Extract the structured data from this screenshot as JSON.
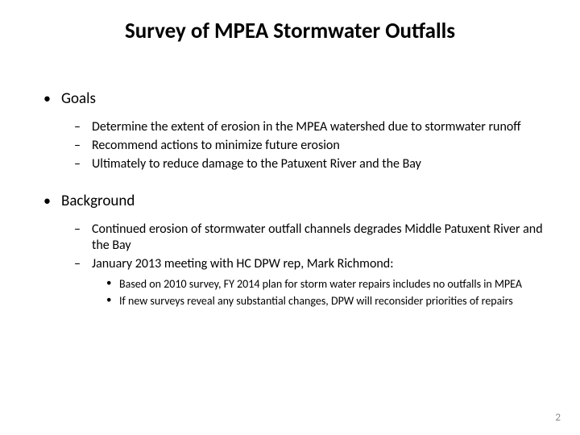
{
  "title": "Survey of MPEA Stormwater Outfalls",
  "page_number": "2",
  "colors": {
    "background": "#ffffff",
    "text": "#000000",
    "pagenum": "#8a8a8a"
  },
  "typography": {
    "title_fontsize": 27,
    "title_weight": 700,
    "level1_fontsize": 19,
    "level2_fontsize": 16,
    "level3_fontsize": 14,
    "font_family": "Calibri"
  },
  "bullets": {
    "level1_marker": "•",
    "level2_marker": "–",
    "level3_marker": "•"
  },
  "sections": [
    {
      "heading": "Goals",
      "items": [
        "Determine the extent of erosion  in the MPEA watershed due to stormwater runoff",
        "Recommend actions to minimize future erosion",
        "Ultimately to reduce damage to the Patuxent River and the Bay"
      ]
    },
    {
      "heading": "Background",
      "items": [
        "Continued erosion of stormwater outfall channels degrades Middle Patuxent River and the Bay",
        {
          "text": "January 2013 meeting with HC DPW rep, Mark Richmond:",
          "subitems": [
            "Based on 2010 survey, FY 2014 plan for storm water repairs includes no outfalls in MPEA",
            "If new surveys reveal any substantial changes, DPW will reconsider priorities of repairs"
          ]
        }
      ]
    }
  ]
}
